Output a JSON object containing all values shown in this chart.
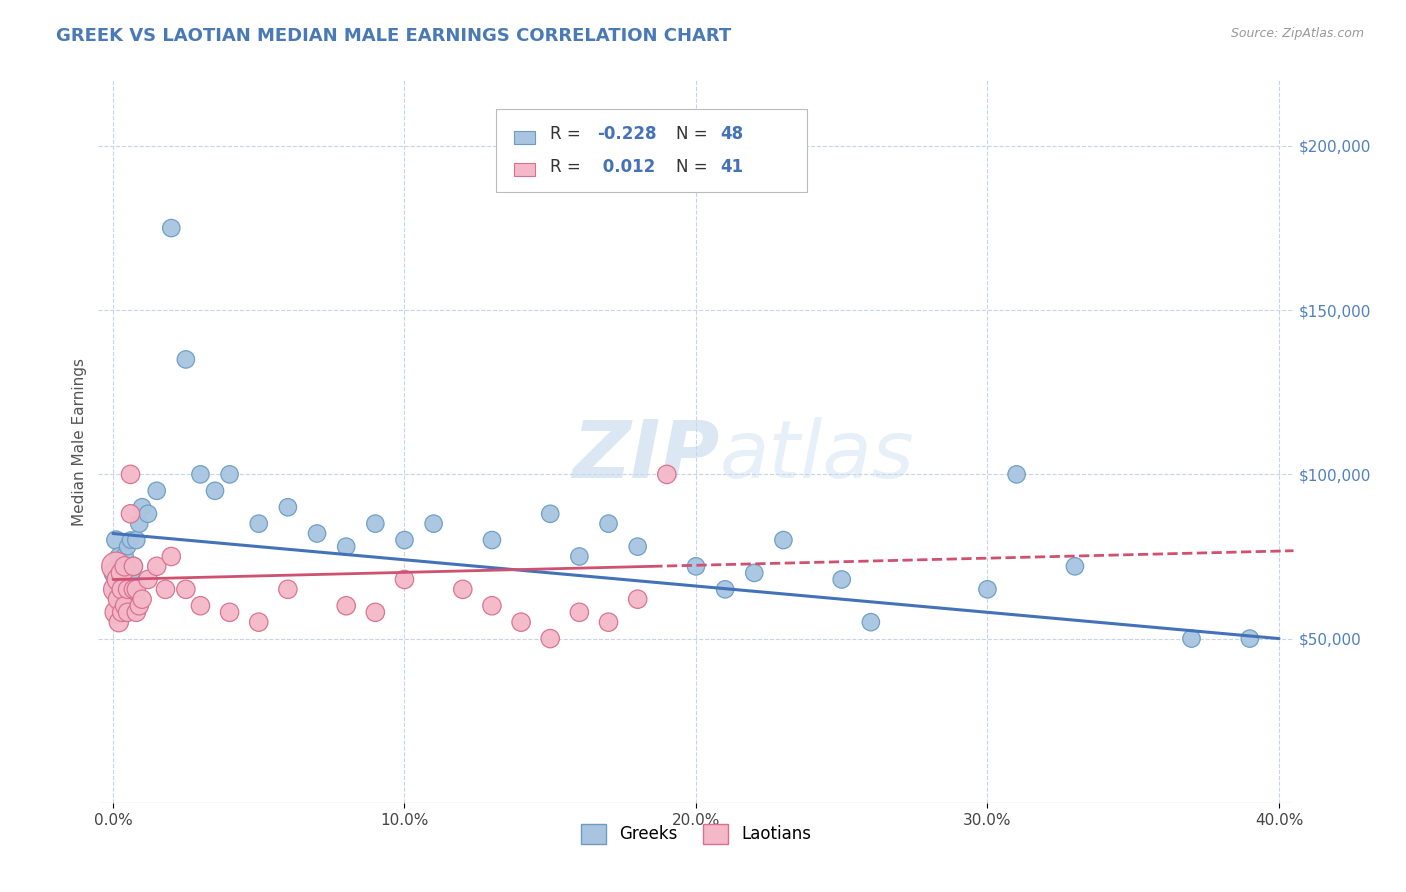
{
  "title": "GREEK VS LAOTIAN MEDIAN MALE EARNINGS CORRELATION CHART",
  "source_text": "Source: ZipAtlas.com",
  "ylabel": "Median Male Earnings",
  "xlim": [
    -0.005,
    0.405
  ],
  "ylim": [
    0,
    220000
  ],
  "xtick_labels": [
    "0.0%",
    "10.0%",
    "20.0%",
    "30.0%",
    "40.0%"
  ],
  "xtick_values": [
    0.0,
    0.1,
    0.2,
    0.3,
    0.4
  ],
  "ytick_right_labels": [
    "$50,000",
    "$100,000",
    "$150,000",
    "$200,000"
  ],
  "ytick_right_values": [
    50000,
    100000,
    150000,
    200000
  ],
  "greek_R": -0.228,
  "greek_N": 48,
  "laotian_R": 0.012,
  "laotian_N": 41,
  "greek_color": "#a8c4e0",
  "greek_edge_color": "#6b9dc2",
  "laotian_color": "#f4b8c8",
  "laotian_edge_color": "#d87090",
  "greek_line_color": "#4472b8",
  "laotian_line_color": "#d05070",
  "title_color": "#4a7ab5",
  "title_fontsize": 13,
  "watermark_zip": "ZIP",
  "watermark_atlas": "atlas",
  "background_color": "#ffffff",
  "grid_color": "#c8d4e8",
  "greeks_x": [
    0.001,
    0.001,
    0.002,
    0.002,
    0.003,
    0.003,
    0.003,
    0.004,
    0.004,
    0.005,
    0.005,
    0.006,
    0.006,
    0.007,
    0.007,
    0.008,
    0.009,
    0.01,
    0.012,
    0.015,
    0.02,
    0.025,
    0.03,
    0.035,
    0.04,
    0.05,
    0.06,
    0.07,
    0.08,
    0.09,
    0.1,
    0.11,
    0.13,
    0.15,
    0.16,
    0.17,
    0.18,
    0.2,
    0.21,
    0.22,
    0.23,
    0.25,
    0.26,
    0.3,
    0.31,
    0.33,
    0.37,
    0.39
  ],
  "greeks_y": [
    80000,
    70000,
    75000,
    65000,
    72000,
    68000,
    60000,
    75000,
    62000,
    78000,
    68000,
    80000,
    70000,
    65000,
    72000,
    80000,
    85000,
    90000,
    88000,
    95000,
    175000,
    135000,
    100000,
    95000,
    100000,
    85000,
    90000,
    82000,
    78000,
    85000,
    80000,
    85000,
    80000,
    88000,
    75000,
    85000,
    78000,
    72000,
    65000,
    70000,
    80000,
    68000,
    55000,
    65000,
    100000,
    72000,
    50000,
    50000
  ],
  "greeks_size": [
    50,
    80,
    45,
    55,
    40,
    50,
    60,
    45,
    55,
    40,
    50,
    40,
    50,
    40,
    50,
    45,
    45,
    45,
    45,
    45,
    45,
    45,
    45,
    45,
    45,
    45,
    45,
    45,
    45,
    45,
    45,
    45,
    45,
    45,
    45,
    45,
    45,
    45,
    45,
    45,
    45,
    45,
    45,
    45,
    45,
    45,
    45,
    45
  ],
  "laotians_x": [
    0.001,
    0.001,
    0.001,
    0.002,
    0.002,
    0.002,
    0.003,
    0.003,
    0.003,
    0.004,
    0.004,
    0.005,
    0.005,
    0.006,
    0.006,
    0.007,
    0.007,
    0.008,
    0.008,
    0.009,
    0.01,
    0.012,
    0.015,
    0.018,
    0.02,
    0.025,
    0.03,
    0.04,
    0.05,
    0.06,
    0.08,
    0.09,
    0.1,
    0.12,
    0.13,
    0.14,
    0.15,
    0.16,
    0.17,
    0.18,
    0.19
  ],
  "laotians_y": [
    72000,
    65000,
    58000,
    68000,
    62000,
    55000,
    70000,
    65000,
    58000,
    72000,
    60000,
    65000,
    58000,
    100000,
    88000,
    72000,
    65000,
    65000,
    58000,
    60000,
    62000,
    68000,
    72000,
    65000,
    75000,
    65000,
    60000,
    58000,
    55000,
    65000,
    60000,
    58000,
    68000,
    65000,
    60000,
    55000,
    50000,
    58000,
    55000,
    62000,
    100000
  ],
  "laotians_size": [
    120,
    90,
    70,
    80,
    65,
    55,
    65,
    55,
    50,
    55,
    50,
    50,
    50,
    50,
    50,
    50,
    50,
    50,
    50,
    50,
    50,
    50,
    50,
    50,
    50,
    50,
    50,
    50,
    50,
    50,
    50,
    50,
    50,
    50,
    50,
    50,
    50,
    50,
    50,
    50,
    50
  ],
  "legend_R_color": "#4472b8",
  "legend_N_color": "#4472b8"
}
